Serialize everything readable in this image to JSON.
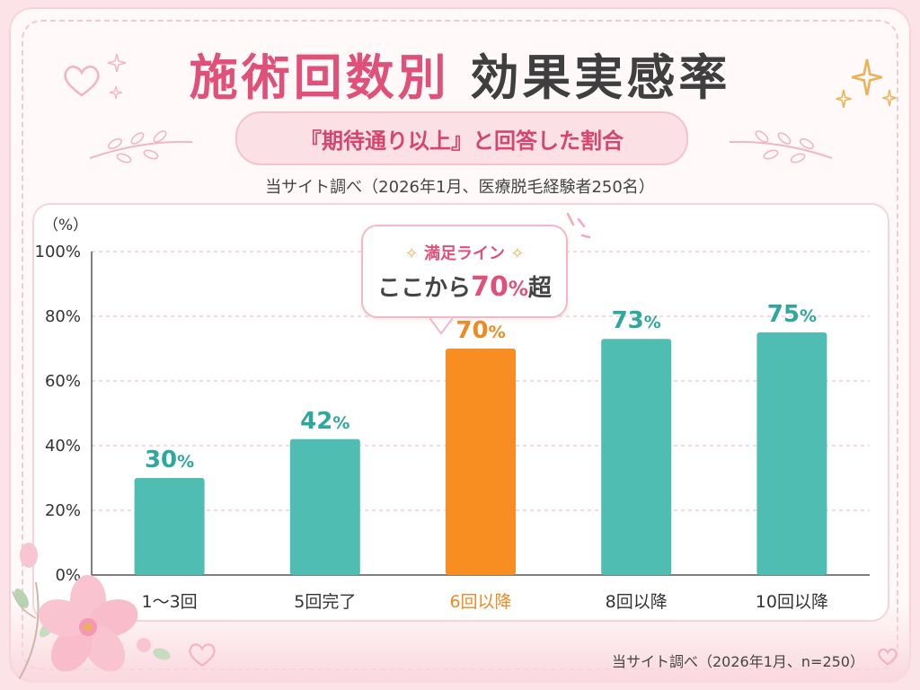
{
  "title": {
    "part1": "施術回数別",
    "part2": "効果実感率"
  },
  "subtitle": "『期待通り以上』と回答した割合",
  "source_top": "当サイト調べ（2026年1月、医療脱毛経験者250名）",
  "source_bottom": "当サイト調べ（2026年1月、n=250）",
  "callout": {
    "title": "満足ライン",
    "body_prefix": "ここから",
    "body_value": "70",
    "body_percent": "%",
    "body_suffix": "超"
  },
  "colors": {
    "bar": "#4fbdb2",
    "bar_highlight": "#f88d22",
    "title_pink": "#e0517a",
    "label_teal": "#2ea79e"
  },
  "chart_data": {
    "type": "bar",
    "unit_label": "（%）",
    "categories": [
      "1〜3回",
      "5回完了",
      "6回以降",
      "8回以降",
      "10回以降"
    ],
    "values": [
      30,
      42,
      70,
      73,
      75
    ],
    "highlight_index": 2,
    "ylim": [
      0,
      100
    ],
    "yticks": [
      "0%",
      "20%",
      "40%",
      "60%",
      "80%",
      "100%"
    ],
    "ytick_values": [
      0,
      20,
      40,
      60,
      80,
      100
    ],
    "grid": true,
    "legend": "none"
  }
}
